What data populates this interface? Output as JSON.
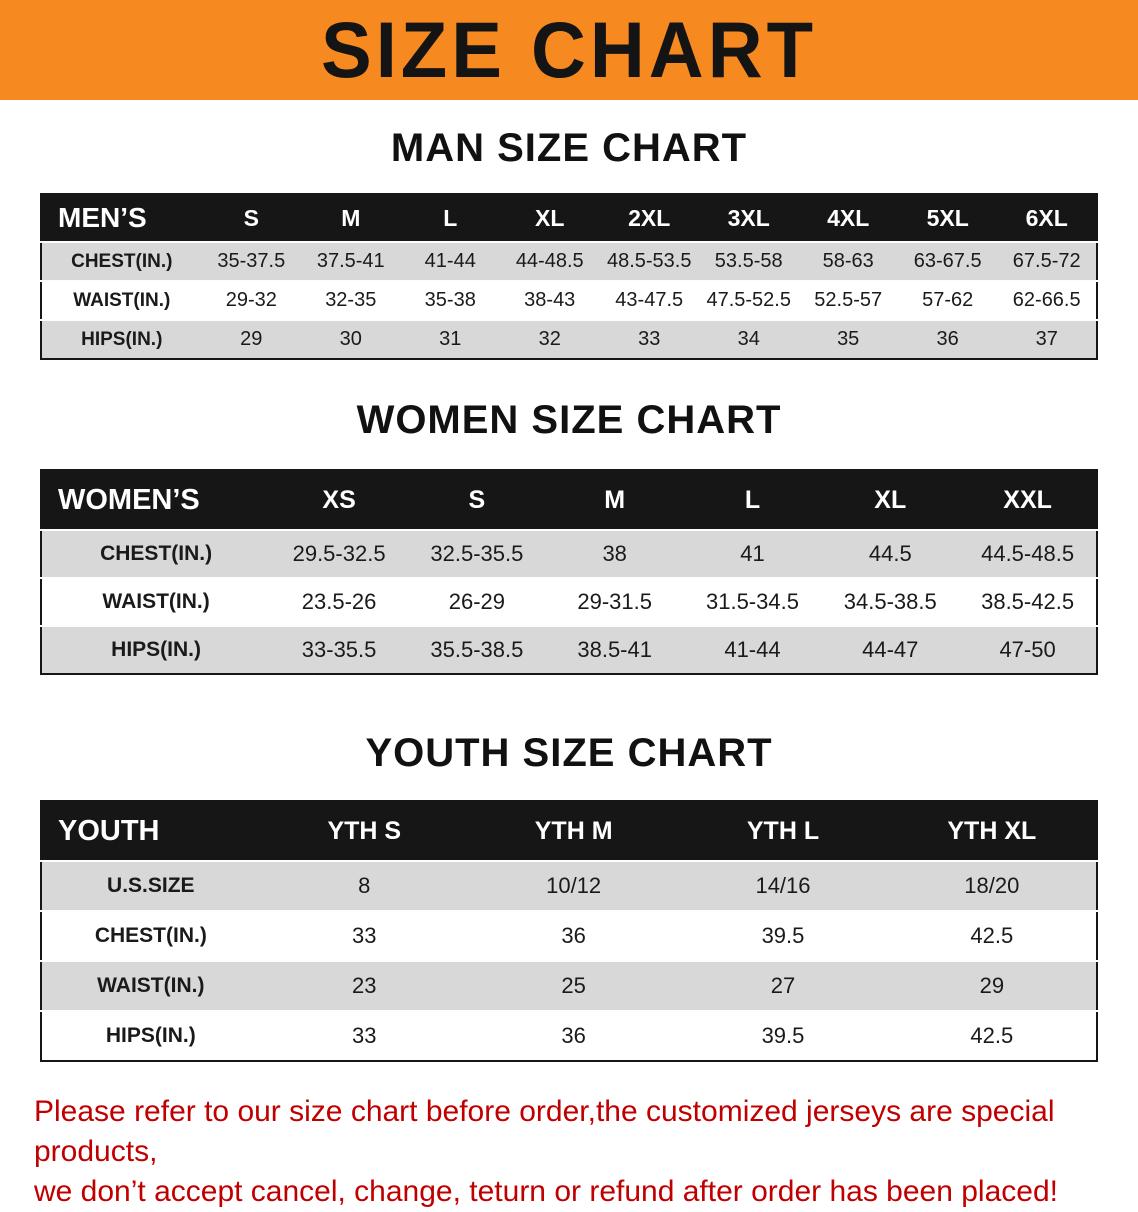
{
  "banner": {
    "title": "SIZE CHART"
  },
  "sections": {
    "men": {
      "heading": "MAN SIZE CHART",
      "table": {
        "header": [
          "MEN’S",
          "S",
          "M",
          "L",
          "XL",
          "2XL",
          "3XL",
          "4XL",
          "5XL",
          "6XL"
        ],
        "rows": [
          [
            "CHEST(IN.)",
            "35-37.5",
            "37.5-41",
            "41-44",
            "44-48.5",
            "48.5-53.5",
            "53.5-58",
            "58-63",
            "63-67.5",
            "67.5-72"
          ],
          [
            "WAIST(IN.)",
            "29-32",
            "32-35",
            "35-38",
            "38-43",
            "43-47.5",
            "47.5-52.5",
            "52.5-57",
            "57-62",
            "62-66.5"
          ],
          [
            "HIPS(IN.)",
            "29",
            "30",
            "31",
            "32",
            "33",
            "34",
            "35",
            "36",
            "37"
          ]
        ]
      }
    },
    "women": {
      "heading": "WOMEN SIZE CHART",
      "table": {
        "header": [
          "WOMEN’S",
          "XS",
          "S",
          "M",
          "L",
          "XL",
          "XXL"
        ],
        "rows": [
          [
            "CHEST(IN.)",
            "29.5-32.5",
            "32.5-35.5",
            "38",
            "41",
            "44.5",
            "44.5-48.5"
          ],
          [
            "WAIST(IN.)",
            "23.5-26",
            "26-29",
            "29-31.5",
            "31.5-34.5",
            "34.5-38.5",
            "38.5-42.5"
          ],
          [
            "HIPS(IN.)",
            "33-35.5",
            "35.5-38.5",
            "38.5-41",
            "41-44",
            "44-47",
            "47-50"
          ]
        ]
      }
    },
    "youth": {
      "heading": "YOUTH SIZE CHART",
      "table": {
        "header": [
          "YOUTH",
          "YTH S",
          "YTH M",
          "YTH L",
          "YTH XL"
        ],
        "rows": [
          [
            "U.S.SIZE",
            "8",
            "10/12",
            "14/16",
            "18/20"
          ],
          [
            "CHEST(IN.)",
            "33",
            "36",
            "39.5",
            "42.5"
          ],
          [
            "WAIST(IN.)",
            "23",
            "25",
            "27",
            "29"
          ],
          [
            "HIPS(IN.)",
            "33",
            "36",
            "39.5",
            "42.5"
          ]
        ]
      }
    }
  },
  "disclaimer": {
    "line1": "Please refer to our size chart before order,the customized jerseys are special products,",
    "line2": "we don’t accept cancel, change, teturn or refund after order has been placed!"
  },
  "colors": {
    "banner_orange": "#F6891F",
    "header_black": "#161616",
    "stripe_gray": "#D8D8D8",
    "disclaimer_red": "#C00000"
  }
}
